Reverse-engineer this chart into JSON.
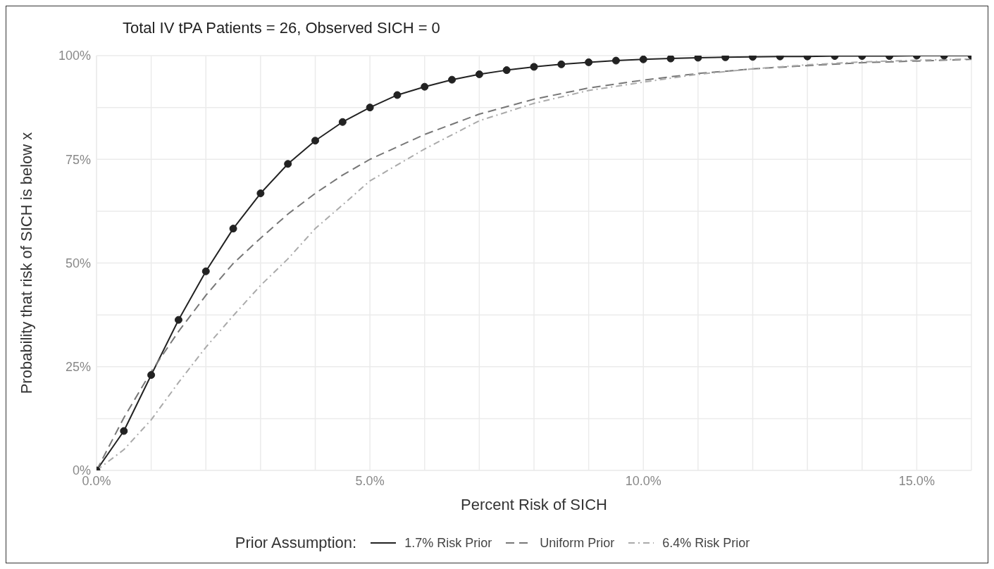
{
  "chart_data": {
    "type": "line",
    "title": "Total IV tPA Patients = 26, Observed SICH = 0",
    "xlabel": "Percent Risk of SICH",
    "ylabel": "Probability that risk of SICH is below x",
    "legend_title": "Prior Assumption:",
    "legend": "bottom",
    "grid": true,
    "xlim": [
      0,
      16
    ],
    "xticks": [
      {
        "value": 0,
        "label": "0.0%"
      },
      {
        "value": 1,
        "label": null
      },
      {
        "value": 2,
        "label": null
      },
      {
        "value": 3,
        "label": null
      },
      {
        "value": 4,
        "label": null
      },
      {
        "value": 5,
        "label": "5.0%"
      },
      {
        "value": 6,
        "label": null
      },
      {
        "value": 7,
        "label": null
      },
      {
        "value": 8,
        "label": null
      },
      {
        "value": 9,
        "label": null
      },
      {
        "value": 10,
        "label": "10.0%"
      },
      {
        "value": 11,
        "label": null
      },
      {
        "value": 12,
        "label": null
      },
      {
        "value": 13,
        "label": null
      },
      {
        "value": 14,
        "label": null
      },
      {
        "value": 15,
        "label": "15.0%"
      },
      {
        "value": 16,
        "label": null
      }
    ],
    "ylim": [
      0,
      100
    ],
    "yticks": [
      {
        "value": 0,
        "label": "0%"
      },
      {
        "value": 12.5,
        "label": null
      },
      {
        "value": 25,
        "label": "25%"
      },
      {
        "value": 37.5,
        "label": null
      },
      {
        "value": 50,
        "label": "50%"
      },
      {
        "value": 62.5,
        "label": null
      },
      {
        "value": 75,
        "label": "75%"
      },
      {
        "value": 87.5,
        "label": null
      },
      {
        "value": 100,
        "label": "100%"
      }
    ],
    "series": [
      {
        "name": "1.7% Risk Prior",
        "color": "#222222",
        "line_style": "solid",
        "marker": "circle",
        "x": [
          0,
          0.5,
          1,
          1.5,
          2,
          2.5,
          3,
          3.5,
          4,
          4.5,
          5,
          5.5,
          6,
          6.5,
          7,
          7.5,
          8,
          8.5,
          9,
          9.5,
          10,
          10.5,
          11,
          11.5,
          12,
          12.5,
          13,
          13.5,
          14,
          14.5,
          15,
          15.5,
          16
        ],
        "values": [
          0,
          9.5,
          23,
          36.3,
          48,
          58.3,
          66.8,
          73.9,
          79.5,
          84,
          87.5,
          90.5,
          92.5,
          94.2,
          95.5,
          96.5,
          97.3,
          97.9,
          98.4,
          98.8,
          99.1,
          99.3,
          99.5,
          99.6,
          99.7,
          99.8,
          99.8,
          99.9,
          99.9,
          99.9,
          100,
          100,
          100
        ]
      },
      {
        "name": "Uniform Prior",
        "color": "#777777",
        "line_style": "dashed",
        "marker": "none",
        "x": [
          0,
          0.5,
          1,
          1.5,
          2,
          2.5,
          3,
          3.5,
          4,
          4.5,
          5,
          6,
          7,
          8,
          9,
          10,
          11,
          12,
          13,
          14,
          15,
          16
        ],
        "values": [
          0,
          12.7,
          23.8,
          33.5,
          42.2,
          49.9,
          56,
          61.8,
          66.8,
          71.2,
          75,
          81,
          85.9,
          89.5,
          92.2,
          94.1,
          95.7,
          96.8,
          97.6,
          98.3,
          98.7,
          99.1
        ]
      },
      {
        "name": "6.4% Risk Prior",
        "color": "#aaaaaa",
        "line_style": "dotted",
        "marker": "none",
        "x": [
          0,
          0.5,
          1,
          1.5,
          2,
          2.5,
          3,
          3.5,
          4,
          4.5,
          5,
          6,
          7,
          8,
          9,
          10,
          11,
          12,
          13,
          14,
          15,
          16
        ],
        "values": [
          0,
          5,
          12.2,
          21.2,
          29.7,
          37.3,
          44.6,
          51,
          58.3,
          64,
          69.8,
          77.5,
          84.3,
          88.5,
          91.6,
          93.6,
          95.5,
          96.8,
          97.8,
          98.5,
          98.9,
          99.2
        ]
      }
    ]
  }
}
